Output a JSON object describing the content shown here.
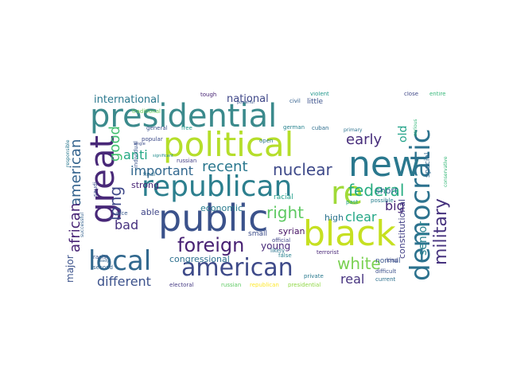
{
  "word_cloud": {
    "words": [
      {
        "text": "presidential",
        "color": "#3b8a8c"
      },
      {
        "text": "political",
        "color": "#b5de2b"
      },
      {
        "text": "republican",
        "color": "#2c7f8e"
      },
      {
        "text": "public",
        "color": "#3b528b"
      },
      {
        "text": "black",
        "color": "#c6e021"
      },
      {
        "text": "american",
        "color": "#3e4a89"
      },
      {
        "text": "new",
        "color": "#2a788e"
      },
      {
        "text": "democratic",
        "color": "#2c728e"
      },
      {
        "text": "local",
        "color": "#31688e"
      },
      {
        "text": "great",
        "color": "#482878"
      },
      {
        "text": "re",
        "color": "#a0da39"
      },
      {
        "text": "foreign",
        "color": "#482173"
      },
      {
        "text": "nuclear",
        "color": "#3e4989"
      },
      {
        "text": "military",
        "color": "#46327e"
      },
      {
        "text": "federal",
        "color": "#27ad81"
      },
      {
        "text": "white",
        "color": "#7ad151"
      },
      {
        "text": "right",
        "color": "#5ec962"
      },
      {
        "text": "recent",
        "color": "#2a778e"
      },
      {
        "text": "early",
        "color": "#472d7b"
      },
      {
        "text": "american",
        "color": "#33628d"
      },
      {
        "text": "african",
        "color": "#482475"
      },
      {
        "text": "long",
        "color": "#3f4889"
      },
      {
        "text": "good",
        "color": "#43bf71"
      },
      {
        "text": "anti",
        "color": "#22a884"
      },
      {
        "text": "important",
        "color": "#31678e"
      },
      {
        "text": "bad",
        "color": "#46307e"
      },
      {
        "text": "different",
        "color": "#3b518b"
      },
      {
        "text": "real",
        "color": "#46337f"
      },
      {
        "text": "big",
        "color": "#482677"
      },
      {
        "text": "clear",
        "color": "#22a785"
      },
      {
        "text": "senior",
        "color": "#26818e"
      },
      {
        "text": "international",
        "color": "#2a788e"
      },
      {
        "text": "national",
        "color": "#3f4788"
      },
      {
        "text": "young",
        "color": "#482979"
      },
      {
        "text": "old",
        "color": "#1fa187"
      },
      {
        "text": "economic",
        "color": "#297b8e"
      },
      {
        "text": "strong",
        "color": "#482576"
      },
      {
        "text": "able",
        "color": "#404688"
      },
      {
        "text": "congressional",
        "color": "#2d708e"
      },
      {
        "text": "short",
        "color": "#31688e"
      },
      {
        "text": "high",
        "color": "#2c738e"
      },
      {
        "text": "syrian",
        "color": "#471365"
      },
      {
        "text": "constitutional",
        "color": "#424086"
      },
      {
        "text": "major",
        "color": "#3b528b"
      },
      {
        "text": "small",
        "color": "#3d4d8a"
      },
      {
        "text": "racial",
        "color": "#1f9e89"
      },
      {
        "text": "special",
        "color": "#31688e"
      },
      {
        "text": "normal",
        "color": "#3a548c"
      },
      {
        "text": "little",
        "color": "#3b518b"
      },
      {
        "text": "violent",
        "color": "#1f968b"
      },
      {
        "text": "civil",
        "color": "#34608d"
      },
      {
        "text": "tough",
        "color": "#482475"
      },
      {
        "text": "close",
        "color": "#3f4788"
      },
      {
        "text": "entire",
        "color": "#35b779"
      },
      {
        "text": "possible",
        "color": "#277f8e"
      },
      {
        "text": "official",
        "color": "#404588"
      },
      {
        "text": "terrorist",
        "color": "#482677"
      },
      {
        "text": "difficult",
        "color": "#3c4f8a"
      },
      {
        "text": "current",
        "color": "#2d708e"
      },
      {
        "text": "kind",
        "color": "#3e4a89"
      },
      {
        "text": "second",
        "color": "#32648e"
      },
      {
        "text": "racist",
        "color": "#39568c"
      },
      {
        "text": "electoral",
        "color": "#443983"
      },
      {
        "text": "russian",
        "color": "#433e85"
      },
      {
        "text": "cuban",
        "color": "#2e6e8e"
      },
      {
        "text": "german",
        "color": "#26828e"
      },
      {
        "text": "popular",
        "color": "#3e4c8a"
      },
      {
        "text": "general",
        "color": "#3b528b"
      },
      {
        "text": "free",
        "color": "#1f9a8a"
      },
      {
        "text": "private",
        "color": "#29798e"
      },
      {
        "text": "false",
        "color": "#27808e"
      },
      {
        "text": "final",
        "color": "#2e6f8e"
      },
      {
        "text": "open",
        "color": "#2a768e"
      },
      {
        "text": "saudi",
        "color": "#3d4e8a"
      },
      {
        "text": "traditional",
        "color": "#6ccd5a"
      },
      {
        "text": "past",
        "color": "#20a386"
      },
      {
        "text": "likely",
        "color": "#2b748e"
      },
      {
        "text": "russian",
        "color": "#5ec962"
      },
      {
        "text": "republican",
        "color": "#fde725"
      },
      {
        "text": "presidential",
        "color": "#8fd744"
      },
      {
        "text": "powerful",
        "color": "#39558c"
      },
      {
        "text": "individual",
        "color": "#3a548c"
      },
      {
        "text": "ready",
        "color": "#32658e"
      },
      {
        "text": "nice",
        "color": "#38588c"
      },
      {
        "text": "serious",
        "color": "#35b779"
      },
      {
        "text": "primary",
        "color": "#2c728e"
      },
      {
        "text": "single",
        "color": "#3d4e8a"
      },
      {
        "text": "responsible",
        "color": "#2a788e"
      },
      {
        "text": "conservative",
        "color": "#37b878"
      },
      {
        "text": "successful",
        "color": "#34618d"
      },
      {
        "text": "significant",
        "color": "#228c8d"
      }
    ]
  }
}
